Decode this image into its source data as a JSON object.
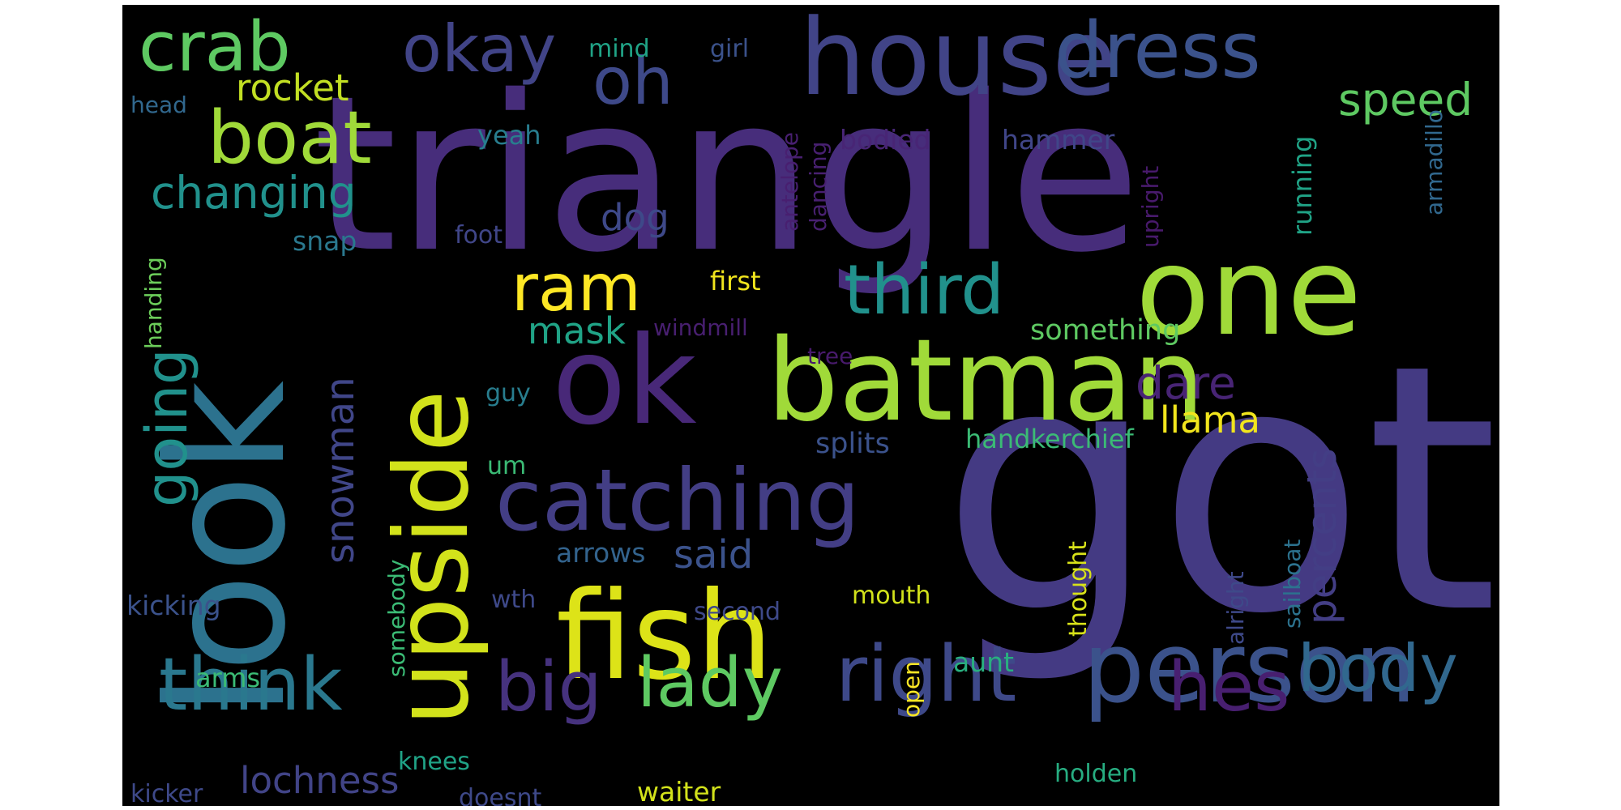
{
  "background_color": "#000000",
  "page_background": "#ffffff",
  "words": [
    {
      "text": "triangle",
      "color": "#472d7b"
    },
    {
      "text": "got",
      "color": "#443a83"
    },
    {
      "text": "look",
      "color": "#2c728e"
    },
    {
      "text": "house",
      "color": "#414487"
    },
    {
      "text": "ok",
      "color": "#482878"
    },
    {
      "text": "upside",
      "color": "#d2e21b"
    },
    {
      "text": "one",
      "color": "#a0da39"
    },
    {
      "text": "batman",
      "color": "#a0da39"
    },
    {
      "text": "fish",
      "color": "#dde318"
    },
    {
      "text": "person",
      "color": "#3b528b"
    },
    {
      "text": "catching",
      "color": "#433e85"
    },
    {
      "text": "dress",
      "color": "#3b528b"
    },
    {
      "text": "crab",
      "color": "#5ec962"
    },
    {
      "text": "okay",
      "color": "#414487"
    },
    {
      "text": "boat",
      "color": "#a0da39"
    },
    {
      "text": "oh",
      "color": "#3e4989"
    },
    {
      "text": "think",
      "color": "#2a788e"
    },
    {
      "text": "big",
      "color": "#46327e"
    },
    {
      "text": "lady",
      "color": "#5ec962"
    },
    {
      "text": "right",
      "color": "#3e4989"
    },
    {
      "text": "hes",
      "color": "#481f70"
    },
    {
      "text": "body",
      "color": "#31688e"
    },
    {
      "text": "ram",
      "color": "#fde725"
    },
    {
      "text": "third",
      "color": "#21918c"
    },
    {
      "text": "going",
      "color": "#21918c"
    },
    {
      "text": "changing",
      "color": "#21918c"
    },
    {
      "text": "rocket",
      "color": "#c2df23"
    },
    {
      "text": "speed",
      "color": "#5ec962"
    },
    {
      "text": "mask",
      "color": "#20a386"
    },
    {
      "text": "dare",
      "color": "#482475"
    },
    {
      "text": "llama",
      "color": "#f1e51d"
    },
    {
      "text": "percents",
      "color": "#433e85"
    },
    {
      "text": "snowman",
      "color": "#404688"
    },
    {
      "text": "said",
      "color": "#3b528b"
    },
    {
      "text": "lochness",
      "color": "#414487"
    },
    {
      "text": "dog",
      "color": "#3e4989"
    },
    {
      "text": "first",
      "color": "#f1e51d"
    },
    {
      "text": "something",
      "color": "#5ec962"
    },
    {
      "text": "handkerchief",
      "color": "#3bbb75"
    },
    {
      "text": "splits",
      "color": "#3b528b"
    },
    {
      "text": "arrows",
      "color": "#33638d"
    },
    {
      "text": "snap",
      "color": "#2a788e"
    },
    {
      "text": "foot",
      "color": "#404688"
    },
    {
      "text": "yeah",
      "color": "#287d8e"
    },
    {
      "text": "bodied",
      "color": "#482575"
    },
    {
      "text": "hammer",
      "color": "#404688"
    },
    {
      "text": "mind",
      "color": "#20a386"
    },
    {
      "text": "girl",
      "color": "#3b528b"
    },
    {
      "text": "head",
      "color": "#31688e"
    },
    {
      "text": "handing",
      "color": "#6ccd5a"
    },
    {
      "text": "windmill",
      "color": "#481f70"
    },
    {
      "text": "tree",
      "color": "#481a6c"
    },
    {
      "text": "guy",
      "color": "#287d8e"
    },
    {
      "text": "um",
      "color": "#3bbb75"
    },
    {
      "text": "kicking",
      "color": "#3b528b"
    },
    {
      "text": "wth",
      "color": "#3e4989"
    },
    {
      "text": "second",
      "color": "#3e4989"
    },
    {
      "text": "mouth",
      "color": "#d2e21b"
    },
    {
      "text": "arms",
      "color": "#3bbb75"
    },
    {
      "text": "somebody",
      "color": "#3bbb75"
    },
    {
      "text": "knees",
      "color": "#20a386"
    },
    {
      "text": "kicker",
      "color": "#3e4989"
    },
    {
      "text": "doesnt",
      "color": "#3e4989"
    },
    {
      "text": "waiter",
      "color": "#d2e21b"
    },
    {
      "text": "holden",
      "color": "#27ad81"
    },
    {
      "text": "aunt",
      "color": "#29af7f"
    },
    {
      "text": "open",
      "color": "#fde725"
    },
    {
      "text": "thought",
      "color": "#d8e219"
    },
    {
      "text": "alright",
      "color": "#3e4989"
    },
    {
      "text": "sailboat",
      "color": "#2c728e"
    },
    {
      "text": "running",
      "color": "#20a386"
    },
    {
      "text": "upright",
      "color": "#481a6c"
    },
    {
      "text": "antelope",
      "color": "#481f70"
    },
    {
      "text": "dancing",
      "color": "#482071"
    },
    {
      "text": "armadillo",
      "color": "#31688e"
    }
  ]
}
